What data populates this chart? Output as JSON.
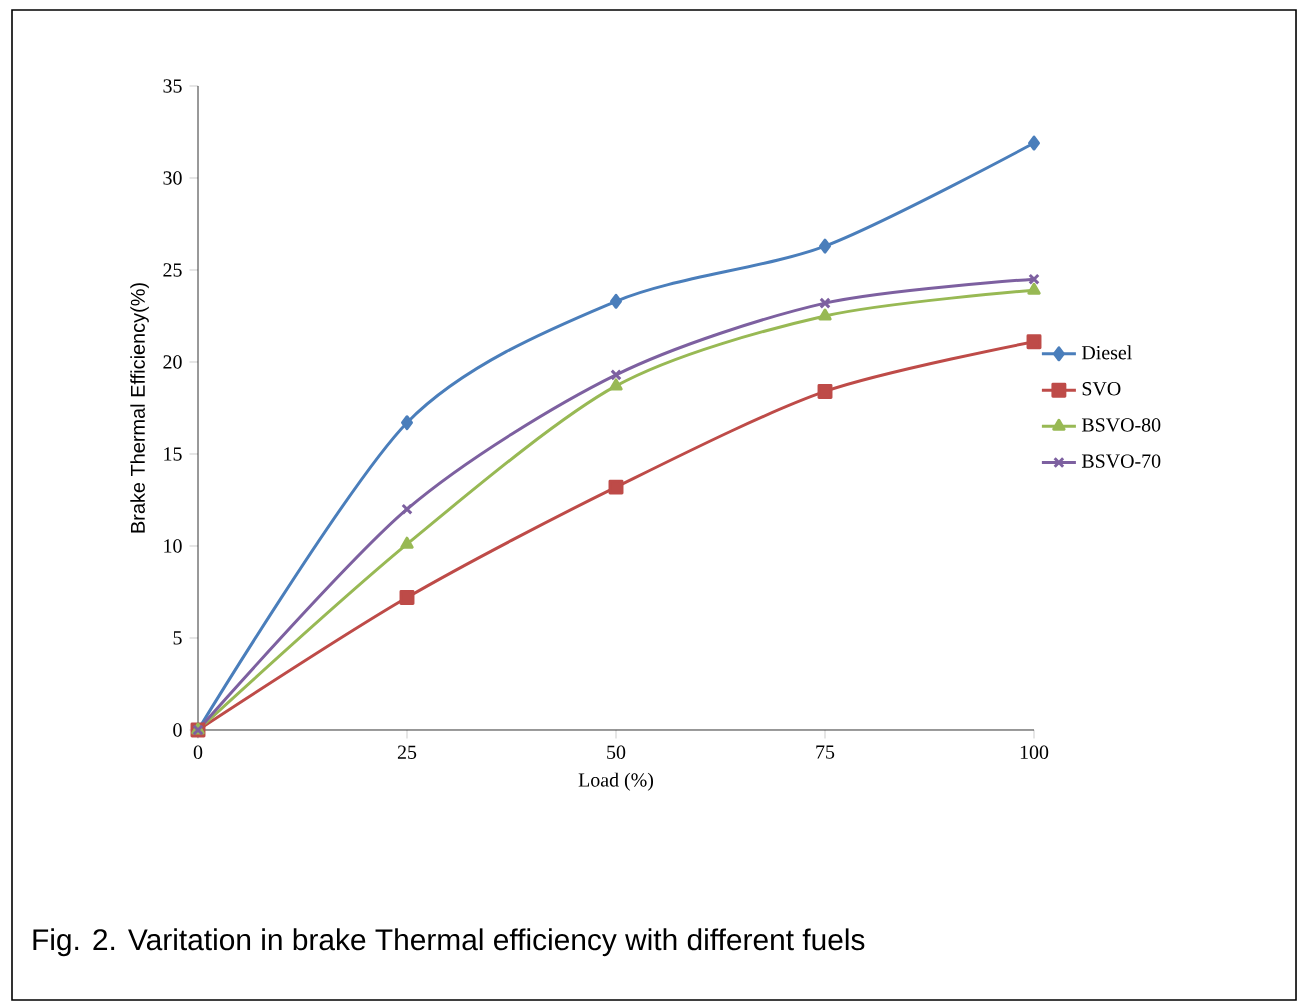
{
  "chart_data": {
    "type": "line",
    "xlabel": "Load (%)",
    "ylabel": "Brake Thermal Efficiency(%)",
    "x": [
      0,
      25,
      50,
      75,
      100
    ],
    "series": [
      {
        "name": "Diesel",
        "color": "#4a7ebb",
        "marker": "diamond",
        "values": [
          0,
          16.7,
          23.3,
          26.3,
          31.9
        ]
      },
      {
        "name": "SVO",
        "color": "#be4b48",
        "marker": "square",
        "values": [
          0,
          7.2,
          13.2,
          18.4,
          21.1
        ]
      },
      {
        "name": "BSVO-80",
        "color": "#98b954",
        "marker": "triangle",
        "values": [
          0,
          10.1,
          18.7,
          22.5,
          23.9
        ]
      },
      {
        "name": "BSVO-70",
        "color": "#7d60a0",
        "marker": "cross",
        "values": [
          0,
          12.0,
          19.3,
          23.2,
          24.5
        ]
      }
    ],
    "xlim": [
      0,
      100
    ],
    "ylim": [
      0,
      35
    ],
    "xticks": [
      0,
      25,
      50,
      75,
      100
    ],
    "yticks": [
      0,
      5,
      10,
      15,
      20,
      25,
      30,
      35
    ],
    "grid": false,
    "legend": "right",
    "line_style": "solid",
    "annotations": [
      "Fig. 2. Varitation in brake Thermal efficiency with different fuels"
    ]
  }
}
